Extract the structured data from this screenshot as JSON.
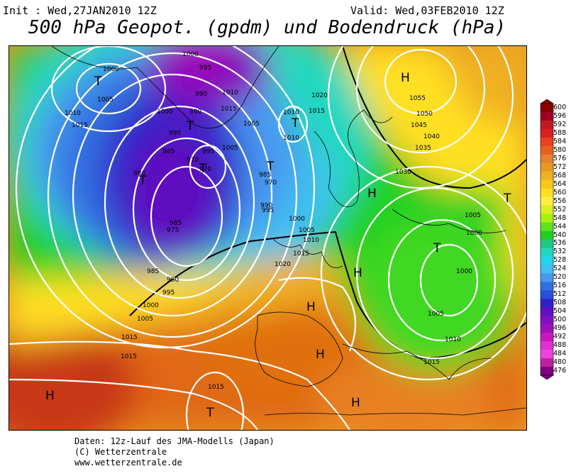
{
  "header": {
    "init": "Init : Wed,27JAN2010 12Z",
    "valid": "Valid: Wed,03FEB2010 12Z",
    "title": "500 hPa Geopot. (gpdm) und Bodendruck (hPa)"
  },
  "legend": {
    "ticks": [
      "600",
      "596",
      "592",
      "588",
      "584",
      "580",
      "576",
      "572",
      "568",
      "564",
      "560",
      "556",
      "552",
      "548",
      "544",
      "540",
      "536",
      "532",
      "528",
      "524",
      "520",
      "516",
      "512",
      "508",
      "504",
      "500",
      "496",
      "492",
      "488",
      "484",
      "480",
      "476"
    ],
    "colors": [
      "#8b0000",
      "#a00020",
      "#c01a20",
      "#d82020",
      "#e84020",
      "#e86020",
      "#e88030",
      "#e89a20",
      "#f0b020",
      "#f8c818",
      "#ffe020",
      "#fff040",
      "#d8f020",
      "#a8f010",
      "#60e020",
      "#20d020",
      "#20c880",
      "#20d8c0",
      "#20d8e8",
      "#40c0f0",
      "#4898f0",
      "#3070e0",
      "#2850d8",
      "#3020c8",
      "#6010c0",
      "#8010c0",
      "#a010b8",
      "#c818c0",
      "#e030d0",
      "#f040e0",
      "#c020a0",
      "#800080"
    ]
  },
  "pressure_labels": [
    "1000",
    "995",
    "1005",
    "1010",
    "1015",
    "1020",
    "1030",
    "1035",
    "1040",
    "1045",
    "1050",
    "1055",
    "990",
    "985",
    "980",
    "975",
    "970"
  ],
  "centers": {
    "high": "H",
    "low": "T"
  },
  "footer": {
    "line1": "Daten: 12z-Lauf des JMA-Modells (Japan)",
    "line2": "(C) Wetterzentrale",
    "line3": "www.wetterzentrale.de"
  }
}
